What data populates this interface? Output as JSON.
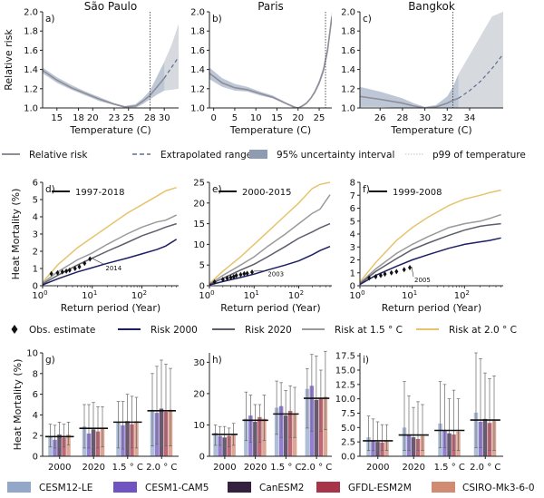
{
  "colors": {
    "relative": "#8e8e99",
    "band": "#a8b4c8",
    "extrap_band": "#d8dbe0",
    "risk2000": "#1c1f63",
    "risk2020": "#5d5e6b",
    "risk15": "#9a9a9a",
    "risk20": "#e6c46d",
    "models": [
      "#93a8c9",
      "#6f54c2",
      "#34203f",
      "#a8344a",
      "#d08b72"
    ]
  },
  "legend_top": {
    "relative": "Relative risk",
    "extrap": "Extrapolated range",
    "uncert": "95% uncertainty interval",
    "p99": "p99 of temperature"
  },
  "legend_mid": {
    "obs": "Obs. estimate",
    "r2000": "Risk 2000",
    "r2020": "Risk 2020",
    "r15": "Risk at 1.5$^\\circ$C",
    "r20": "Risk at 2.0$^\\circ$C"
  },
  "legend_mid_display": {
    "r15": "Risk at 1.5 ° C",
    "r20": "Risk at 2.0 ° C"
  },
  "models": [
    "CESM12-LE",
    "CESM1-CAM5",
    "CanESM2",
    "GFDL-ESM2M",
    "CSIRO-Mk3-6-0"
  ],
  "chart_data": [
    {
      "type": "line",
      "panel": "a)",
      "title": "São Paulo",
      "xlabel": "Temperature (C)",
      "ylabel": "Relative risk",
      "xlim": [
        13,
        32
      ],
      "ylim": [
        1.0,
        2.0
      ],
      "xticks": [
        15,
        18,
        20,
        23,
        25,
        28,
        30
      ],
      "yticks": [
        1.0,
        1.2,
        1.4,
        1.6,
        1.8,
        2.0
      ],
      "p99": 28.0,
      "observed_max": 30.0,
      "x": [
        13,
        15,
        17,
        19,
        21,
        23,
        24.5,
        26,
        27,
        28,
        29,
        30,
        31,
        32
      ],
      "y": [
        1.39,
        1.29,
        1.21,
        1.15,
        1.09,
        1.04,
        1.01,
        1.02,
        1.07,
        1.13,
        1.22,
        1.31,
        1.42,
        1.53
      ],
      "lower": [
        1.36,
        1.26,
        1.19,
        1.13,
        1.07,
        1.03,
        1.0,
        1.0,
        1.04,
        1.09,
        1.14,
        1.18,
        1.19,
        1.2
      ],
      "upper": [
        1.42,
        1.32,
        1.24,
        1.17,
        1.11,
        1.05,
        1.02,
        1.04,
        1.1,
        1.18,
        1.33,
        1.48,
        1.65,
        1.87
      ]
    },
    {
      "type": "line",
      "panel": "b)",
      "title": "Paris",
      "xlabel": "Temperature (C)",
      "ylabel": "",
      "xlim": [
        -1,
        28
      ],
      "ylim": [
        1.0,
        2.0
      ],
      "xticks": [
        0,
        5,
        10,
        15,
        20,
        25
      ],
      "yticks": [
        1.0,
        1.2,
        1.4,
        1.6,
        1.8,
        2.0
      ],
      "p99": 26.5,
      "observed_max": 28,
      "x": [
        -1,
        2,
        5,
        8,
        11,
        14,
        17,
        19,
        20,
        21,
        22,
        23,
        24,
        25,
        26,
        27,
        28
      ],
      "y": [
        1.36,
        1.26,
        1.21,
        1.19,
        1.15,
        1.11,
        1.05,
        1.01,
        1.0,
        1.02,
        1.05,
        1.1,
        1.17,
        1.26,
        1.39,
        1.6,
        1.95
      ],
      "lower": [
        1.3,
        1.22,
        1.18,
        1.17,
        1.13,
        1.1,
        1.04,
        1.0,
        1.0,
        1.01,
        1.04,
        1.09,
        1.15,
        1.24,
        1.36,
        1.56,
        1.88
      ],
      "upper": [
        1.42,
        1.31,
        1.25,
        1.22,
        1.17,
        1.13,
        1.06,
        1.02,
        1.0,
        1.03,
        1.06,
        1.11,
        1.19,
        1.29,
        1.43,
        1.65,
        2.0
      ]
    },
    {
      "type": "line",
      "panel": "c)",
      "title": "Bangkok",
      "xlabel": "Temperature (C)",
      "ylabel": "",
      "xlim": [
        24.2,
        37
      ],
      "ylim": [
        1.0,
        2.0
      ],
      "xticks": [
        26,
        28,
        30,
        32,
        34
      ],
      "yticks": [
        1.0,
        1.2,
        1.4,
        1.6,
        1.8,
        2.0
      ],
      "p99": 32.5,
      "observed_max": 33.2,
      "x": [
        24.2,
        26,
        28,
        29,
        30,
        31,
        32,
        32.5,
        33,
        34,
        35,
        36,
        37
      ],
      "y": [
        1.12,
        1.09,
        1.05,
        1.02,
        1.0,
        1.01,
        1.05,
        1.08,
        1.1,
        1.18,
        1.28,
        1.41,
        1.56
      ],
      "lower": [
        1.01,
        1.01,
        1.0,
        1.0,
        1.0,
        1.0,
        1.0,
        1.0,
        1.0,
        1.0,
        1.0,
        1.0,
        1.0
      ],
      "upper": [
        1.22,
        1.17,
        1.1,
        1.05,
        1.01,
        1.03,
        1.12,
        1.22,
        1.35,
        1.55,
        1.75,
        1.95,
        2.0
      ]
    },
    {
      "type": "line",
      "panel": "d)",
      "xlabel": "Return period (Year)",
      "ylabel": "Heat Mortality (%)",
      "logx": true,
      "xlim": [
        1,
        550
      ],
      "ylim": [
        0,
        6
      ],
      "xtick_labels": [
        "10$^0$",
        "10$^1$",
        "10$^2$"
      ],
      "yticks": [
        0,
        1,
        2,
        3,
        4,
        5,
        6
      ],
      "obs_label": "1997-2018",
      "obs_event": "2014",
      "obs_event_xy": [
        15,
        1.75
      ],
      "obs_x": [
        1.5,
        2,
        2.5,
        3,
        3.5,
        4.5,
        5.5,
        7,
        9
      ],
      "obs_y": [
        0.7,
        0.75,
        0.8,
        0.85,
        0.9,
        1.0,
        1.1,
        1.3,
        1.55
      ],
      "x": [
        1,
        2,
        5,
        10,
        20,
        50,
        100,
        200,
        300,
        500
      ],
      "series": [
        {
          "name": "Risk 2000",
          "values": [
            0.05,
            0.4,
            0.8,
            1.05,
            1.3,
            1.6,
            1.85,
            2.1,
            2.3,
            2.7
          ]
        },
        {
          "name": "Risk 2020",
          "values": [
            0.1,
            0.6,
            1.2,
            1.6,
            2.0,
            2.5,
            2.9,
            3.2,
            3.4,
            3.6
          ]
        },
        {
          "name": "Risk at 1.5°C",
          "values": [
            0.15,
            0.8,
            1.5,
            1.9,
            2.4,
            3.0,
            3.4,
            3.7,
            3.8,
            4.1
          ]
        },
        {
          "name": "Risk at 2.0°C",
          "values": [
            0.2,
            1.2,
            2.2,
            2.8,
            3.4,
            4.2,
            4.7,
            5.2,
            5.5,
            5.7
          ]
        }
      ]
    },
    {
      "type": "line",
      "panel": "e)",
      "xlabel": "Return period (Year)",
      "ylabel": "",
      "logx": true,
      "xlim": [
        1,
        550
      ],
      "ylim": [
        0,
        25
      ],
      "xtick_labels": [
        "10$^0$",
        "10$^1$",
        "10$^2$"
      ],
      "yticks": [
        0,
        5,
        10,
        15,
        20,
        25
      ],
      "obs_label": "2000-2015",
      "obs_event": "2003",
      "obs_event_xy": [
        16,
        5.8
      ],
      "obs_x": [
        1.3,
        2,
        2.5,
        3,
        3.5,
        4,
        5,
        6,
        7,
        9
      ],
      "obs_y": [
        0.9,
        1.5,
        1.8,
        2.0,
        2.2,
        2.5,
        2.7,
        2.9,
        3.0,
        3.3
      ],
      "x": [
        1,
        2,
        5,
        10,
        20,
        50,
        100,
        200,
        300,
        500
      ],
      "series": [
        {
          "name": "Risk 2000",
          "values": [
            0.2,
            1.0,
            2.0,
            2.8,
            3.8,
            5.0,
            6.0,
            7.5,
            8.5,
            9.5
          ]
        },
        {
          "name": "Risk 2020",
          "values": [
            0.3,
            1.8,
            3.8,
            5.2,
            7.0,
            9.5,
            11.5,
            13.0,
            14.0,
            15.0
          ]
        },
        {
          "name": "Risk at 1.5°C",
          "values": [
            0.4,
            2.5,
            5.0,
            7.0,
            9.5,
            12.5,
            15.0,
            17.5,
            18.5,
            22.0
          ]
        },
        {
          "name": "Risk at 2.0°C",
          "values": [
            0.5,
            3.5,
            7.0,
            10.0,
            13.0,
            17.0,
            20.0,
            23.5,
            24.5,
            25.0
          ]
        }
      ]
    },
    {
      "type": "line",
      "panel": "f)",
      "xlabel": "Return period (Year)",
      "ylabel": "",
      "logx": true,
      "xlim": [
        1,
        550
      ],
      "ylim": [
        0,
        8
      ],
      "xtick_labels": [
        "10$^0$",
        "10$^1$",
        "10$^2$"
      ],
      "yticks": [
        0,
        1,
        2,
        3,
        4,
        5,
        6,
        7,
        8
      ],
      "obs_label": "1999-2008",
      "obs_event": "2005",
      "obs_event_xy": [
        9,
        1.4
      ],
      "obs_x": [
        1.5,
        2,
        2.5,
        3,
        4,
        5,
        7,
        9
      ],
      "obs_y": [
        0.6,
        0.7,
        0.8,
        0.9,
        1.0,
        1.1,
        1.25,
        1.4
      ],
      "x": [
        1,
        2,
        5,
        10,
        20,
        50,
        100,
        200,
        300,
        500
      ],
      "series": [
        {
          "name": "Risk 2000",
          "values": [
            0.1,
            0.8,
            1.5,
            2.0,
            2.4,
            2.9,
            3.2,
            3.4,
            3.5,
            3.7
          ]
        },
        {
          "name": "Risk 2020",
          "values": [
            0.15,
            1.1,
            2.1,
            2.8,
            3.3,
            3.9,
            4.3,
            4.6,
            4.7,
            4.8
          ]
        },
        {
          "name": "Risk at 1.5°C",
          "values": [
            0.2,
            1.3,
            2.5,
            3.2,
            3.8,
            4.5,
            4.8,
            5.0,
            5.2,
            5.5
          ]
        },
        {
          "name": "Risk at 2.0°C",
          "values": [
            0.3,
            1.8,
            3.5,
            4.5,
            5.3,
            6.2,
            6.7,
            7.0,
            7.2,
            7.4
          ]
        }
      ]
    },
    {
      "type": "bar",
      "panel": "g)",
      "ylabel": "Heat Mortality (%)",
      "ylim": [
        0,
        10
      ],
      "yticks": [
        0,
        2,
        4,
        6,
        8,
        10
      ],
      "categories": [
        "2000",
        "2020",
        "1.5$^\\circ$C",
        "2.0$^\\circ$C"
      ],
      "category_labels": [
        "2000",
        "2020",
        "1.5 ° C",
        "2.0 ° C"
      ],
      "ensemble_mean": [
        1.9,
        2.7,
        3.3,
        4.4
      ],
      "series": [
        {
          "name": "CESM12-LE",
          "values": [
            1.9,
            2.9,
            3.3,
            4.5
          ],
          "err_low": [
            0.9,
            0.8,
            0.8,
            1.0
          ],
          "err_high": [
            3.1,
            5.0,
            5.3,
            8.0
          ]
        },
        {
          "name": "CESM1-CAM5",
          "values": [
            1.6,
            2.2,
            3.0,
            4.2
          ],
          "err_low": [
            0.8,
            0.8,
            0.7,
            1.2
          ],
          "err_high": [
            3.0,
            5.0,
            5.3,
            8.7
          ]
        },
        {
          "name": "CanESM2",
          "values": [
            2.1,
            2.6,
            3.4,
            4.6
          ],
          "err_low": [
            1.0,
            0.9,
            0.7,
            1.0
          ],
          "err_high": [
            3.3,
            5.2,
            6.0,
            9.3
          ]
        },
        {
          "name": "GFDL-ESM2M",
          "values": [
            1.8,
            2.4,
            3.1,
            4.3
          ],
          "err_low": [
            0.9,
            0.8,
            0.8,
            1.0
          ],
          "err_high": [
            3.1,
            4.8,
            5.8,
            8.9
          ]
        },
        {
          "name": "CSIRO-Mk3-6-0",
          "values": [
            2.1,
            2.7,
            3.4,
            4.5
          ],
          "err_low": [
            1.1,
            0.9,
            0.8,
            1.0
          ],
          "err_high": [
            3.3,
            4.8,
            5.7,
            8.5
          ]
        }
      ]
    },
    {
      "type": "bar",
      "panel": "h)",
      "ylabel": "",
      "ylim": [
        0,
        33
      ],
      "yticks": [
        0,
        10,
        20,
        30
      ],
      "categories": [
        "2000",
        "2020",
        "1.5$^\\circ$C",
        "2.0$^\\circ$C"
      ],
      "category_labels": [
        "2000",
        "2020",
        "1.5 ° C",
        "2.0 ° C"
      ],
      "ensemble_mean": [
        7.0,
        11.5,
        13.5,
        18.5
      ],
      "series": [
        {
          "name": "CESM12-LE",
          "values": [
            7.5,
            12.0,
            15.5,
            21.5
          ],
          "err_low": [
            3.5,
            5.0,
            7.0,
            9.0
          ],
          "err_high": [
            10.0,
            20.5,
            24.0,
            28.0
          ]
        },
        {
          "name": "CESM1-CAM5",
          "values": [
            6.5,
            13.0,
            16.0,
            22.5
          ],
          "err_low": [
            3.5,
            4.5,
            6.0,
            8.0
          ],
          "err_high": [
            9.5,
            19.5,
            23.5,
            32.5
          ]
        },
        {
          "name": "CanESM2",
          "values": [
            6.0,
            11.0,
            13.0,
            18.0
          ],
          "err_low": [
            3.0,
            4.5,
            5.5,
            8.0
          ],
          "err_high": [
            9.5,
            16.5,
            21.0,
            32.0
          ]
        },
        {
          "name": "GFDL-ESM2M",
          "values": [
            6.5,
            12.5,
            14.5,
            18.5
          ],
          "err_low": [
            3.0,
            4.5,
            6.0,
            8.0
          ],
          "err_high": [
            9.0,
            16.5,
            22.5,
            27.5
          ]
        },
        {
          "name": "CSIRO-Mk3-6-0",
          "values": [
            7.0,
            12.0,
            13.5,
            19.0
          ],
          "err_low": [
            3.5,
            5.0,
            6.0,
            8.5
          ],
          "err_high": [
            10.5,
            19.5,
            22.0,
            33.5
          ]
        }
      ]
    },
    {
      "type": "bar",
      "panel": "i)",
      "ylabel": "",
      "ylim": [
        0,
        18
      ],
      "yticks": [
        0.0,
        2.5,
        5.0,
        7.5,
        10.0,
        12.5,
        15.0,
        17.5
      ],
      "ytick_labels": [
        "0.0",
        "2.5",
        "5.0",
        "7.5",
        "10.0",
        "12.5",
        "15.0",
        "17.5"
      ],
      "categories": [
        "2000",
        "2020",
        "1.5$^\\circ$C",
        "2.0$^\\circ$C"
      ],
      "category_labels": [
        "2000",
        "2020",
        "1.5 ° C",
        "2.0 ° C"
      ],
      "ensemble_mean": [
        2.7,
        3.7,
        4.5,
        6.3
      ],
      "series": [
        {
          "name": "CESM12-LE",
          "values": [
            3.3,
            5.0,
            5.7,
            7.6
          ],
          "err_low": [
            1.0,
            1.0,
            1.5,
            1.5
          ],
          "err_high": [
            7.0,
            13.0,
            13.0,
            18.0
          ]
        },
        {
          "name": "CESM1-CAM5",
          "values": [
            2.8,
            3.7,
            4.5,
            6.0
          ],
          "err_low": [
            1.0,
            1.0,
            1.5,
            1.5
          ],
          "err_high": [
            6.5,
            10.5,
            12.5,
            17.0
          ]
        },
        {
          "name": "CanESM2",
          "values": [
            2.5,
            3.3,
            4.0,
            6.5
          ],
          "err_low": [
            1.0,
            1.0,
            1.0,
            1.0
          ],
          "err_high": [
            6.0,
            8.5,
            10.0,
            14.5
          ]
        },
        {
          "name": "GFDL-ESM2M",
          "values": [
            2.4,
            3.0,
            3.8,
            5.8
          ],
          "err_low": [
            1.0,
            1.0,
            1.0,
            1.0
          ],
          "err_high": [
            5.5,
            9.5,
            11.5,
            13.5
          ]
        },
        {
          "name": "CSIRO-Mk3-6-0",
          "values": [
            2.7,
            3.5,
            4.3,
            6.2
          ],
          "err_low": [
            1.0,
            1.0,
            1.0,
            1.0
          ],
          "err_high": [
            5.5,
            9.0,
            10.0,
            14.0
          ]
        }
      ]
    }
  ]
}
